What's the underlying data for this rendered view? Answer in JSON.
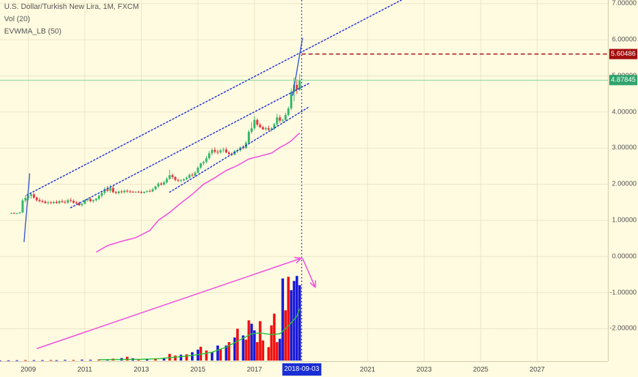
{
  "legend": {
    "title": "U.S. Dollar/Turkish New Lira, 1M, FXCM",
    "vol": "Vol (20)",
    "indicator": "EVWMA_LB (50)"
  },
  "chart_data": {
    "type": "candlestick",
    "title": "U.S. Dollar/Turkish New Lira, 1M, FXCM",
    "price_axis": {
      "ticks": [
        "7.00000",
        "6.00000",
        "5.00000",
        "4.00000",
        "3.00000",
        "2.00000",
        "1.00000",
        "0.00000",
        "-1.00000",
        "-2.00000"
      ],
      "ylim": [
        -2.9,
        7.1
      ]
    },
    "time_axis": {
      "ticks": [
        "2009",
        "2011",
        "2013",
        "2015",
        "2017",
        "2021",
        "2023",
        "2025",
        "2027"
      ],
      "xlim": [
        2008.0,
        2029.5
      ]
    },
    "last_price": {
      "value": "4.87845",
      "color": "#2ea36b"
    },
    "marked_price": {
      "value": "5.60486",
      "color": "#a30d0d"
    },
    "cursor_time": {
      "label": "2018-09-03",
      "x": 2018.67,
      "color": "#1a2ed6"
    },
    "candles": [
      [
        2008.4,
        1.2,
        1.22,
        1.18,
        1.2
      ],
      [
        2008.5,
        1.2,
        1.22,
        1.18,
        1.19
      ],
      [
        2008.6,
        1.19,
        1.21,
        1.17,
        1.2
      ],
      [
        2008.7,
        1.2,
        1.24,
        1.18,
        1.22
      ],
      [
        2008.8,
        1.22,
        1.6,
        1.2,
        1.55
      ],
      [
        2008.9,
        1.55,
        1.7,
        1.5,
        1.62
      ],
      [
        2009.0,
        1.62,
        1.75,
        1.55,
        1.68
      ],
      [
        2009.1,
        1.68,
        1.78,
        1.6,
        1.72
      ],
      [
        2009.2,
        1.72,
        1.76,
        1.6,
        1.63
      ],
      [
        2009.3,
        1.63,
        1.66,
        1.52,
        1.56
      ],
      [
        2009.4,
        1.56,
        1.62,
        1.5,
        1.53
      ],
      [
        2009.5,
        1.53,
        1.58,
        1.48,
        1.52
      ],
      [
        2009.6,
        1.52,
        1.56,
        1.46,
        1.48
      ],
      [
        2009.7,
        1.48,
        1.54,
        1.44,
        1.5
      ],
      [
        2009.8,
        1.5,
        1.54,
        1.45,
        1.48
      ],
      [
        2009.9,
        1.48,
        1.54,
        1.45,
        1.51
      ],
      [
        2010.0,
        1.51,
        1.56,
        1.46,
        1.48
      ],
      [
        2010.1,
        1.48,
        1.56,
        1.45,
        1.53
      ],
      [
        2010.2,
        1.53,
        1.58,
        1.48,
        1.51
      ],
      [
        2010.3,
        1.51,
        1.56,
        1.46,
        1.49
      ],
      [
        2010.4,
        1.49,
        1.6,
        1.46,
        1.56
      ],
      [
        2010.5,
        1.56,
        1.62,
        1.5,
        1.54
      ],
      [
        2010.6,
        1.54,
        1.58,
        1.46,
        1.49
      ],
      [
        2010.7,
        1.49,
        1.54,
        1.45,
        1.48
      ],
      [
        2010.8,
        1.48,
        1.52,
        1.4,
        1.42
      ],
      [
        2010.9,
        1.42,
        1.48,
        1.38,
        1.46
      ],
      [
        2011.0,
        1.46,
        1.58,
        1.44,
        1.56
      ],
      [
        2011.1,
        1.56,
        1.62,
        1.52,
        1.59
      ],
      [
        2011.2,
        1.59,
        1.62,
        1.5,
        1.53
      ],
      [
        2011.3,
        1.53,
        1.58,
        1.48,
        1.56
      ],
      [
        2011.4,
        1.56,
        1.62,
        1.52,
        1.6
      ],
      [
        2011.5,
        1.6,
        1.72,
        1.56,
        1.68
      ],
      [
        2011.6,
        1.68,
        1.8,
        1.62,
        1.76
      ],
      [
        2011.7,
        1.76,
        1.92,
        1.7,
        1.86
      ],
      [
        2011.8,
        1.86,
        1.95,
        1.78,
        1.82
      ],
      [
        2011.9,
        1.82,
        1.98,
        1.76,
        1.9
      ],
      [
        2012.0,
        1.9,
        1.95,
        1.75,
        1.78
      ],
      [
        2012.1,
        1.78,
        1.82,
        1.72,
        1.76
      ],
      [
        2012.2,
        1.76,
        1.82,
        1.72,
        1.8
      ],
      [
        2012.3,
        1.8,
        1.84,
        1.74,
        1.78
      ],
      [
        2012.4,
        1.78,
        1.86,
        1.74,
        1.82
      ],
      [
        2012.5,
        1.82,
        1.86,
        1.76,
        1.8
      ],
      [
        2012.6,
        1.8,
        1.84,
        1.76,
        1.79
      ],
      [
        2012.7,
        1.79,
        1.82,
        1.76,
        1.78
      ],
      [
        2012.8,
        1.78,
        1.81,
        1.76,
        1.79
      ],
      [
        2012.9,
        1.79,
        1.82,
        1.76,
        1.78
      ],
      [
        2013.0,
        1.78,
        1.82,
        1.74,
        1.76
      ],
      [
        2013.1,
        1.76,
        1.8,
        1.74,
        1.79
      ],
      [
        2013.2,
        1.79,
        1.84,
        1.77,
        1.81
      ],
      [
        2013.3,
        1.81,
        1.86,
        1.78,
        1.8
      ],
      [
        2013.4,
        1.8,
        1.9,
        1.78,
        1.86
      ],
      [
        2013.5,
        1.86,
        1.96,
        1.84,
        1.94
      ],
      [
        2013.6,
        1.94,
        2.06,
        1.9,
        2.02
      ],
      [
        2013.7,
        2.02,
        2.06,
        1.96,
        1.99
      ],
      [
        2013.8,
        1.99,
        2.1,
        1.96,
        2.05
      ],
      [
        2013.9,
        2.05,
        2.2,
        2.02,
        2.15
      ],
      [
        2014.0,
        2.15,
        2.4,
        2.12,
        2.25
      ],
      [
        2014.1,
        2.25,
        2.3,
        2.15,
        2.2
      ],
      [
        2014.2,
        2.2,
        2.22,
        2.08,
        2.12
      ],
      [
        2014.3,
        2.12,
        2.15,
        2.06,
        2.1
      ],
      [
        2014.4,
        2.1,
        2.14,
        2.05,
        2.11
      ],
      [
        2014.5,
        2.11,
        2.16,
        2.08,
        2.14
      ],
      [
        2014.6,
        2.14,
        2.22,
        2.12,
        2.18
      ],
      [
        2014.7,
        2.18,
        2.3,
        2.15,
        2.26
      ],
      [
        2014.8,
        2.26,
        2.32,
        2.2,
        2.24
      ],
      [
        2014.9,
        2.24,
        2.36,
        2.2,
        2.32
      ],
      [
        2015.0,
        2.32,
        2.5,
        2.3,
        2.46
      ],
      [
        2015.1,
        2.46,
        2.6,
        2.42,
        2.58
      ],
      [
        2015.2,
        2.58,
        2.66,
        2.52,
        2.62
      ],
      [
        2015.3,
        2.62,
        2.78,
        2.58,
        2.72
      ],
      [
        2015.4,
        2.72,
        2.92,
        2.68,
        2.86
      ],
      [
        2015.5,
        2.86,
        3.0,
        2.8,
        2.95
      ],
      [
        2015.6,
        2.95,
        3.02,
        2.85,
        2.9
      ],
      [
        2015.7,
        2.9,
        2.96,
        2.82,
        2.88
      ],
      [
        2015.8,
        2.88,
        2.98,
        2.84,
        2.94
      ],
      [
        2015.9,
        2.94,
        3.02,
        2.88,
        2.96
      ],
      [
        2016.0,
        2.96,
        3.02,
        2.86,
        2.88
      ],
      [
        2016.1,
        2.88,
        2.92,
        2.8,
        2.84
      ],
      [
        2016.2,
        2.84,
        2.88,
        2.78,
        2.82
      ],
      [
        2016.3,
        2.82,
        2.95,
        2.8,
        2.92
      ],
      [
        2016.4,
        2.92,
        2.98,
        2.86,
        2.94
      ],
      [
        2016.5,
        2.94,
        3.05,
        2.9,
        3.02
      ],
      [
        2016.6,
        3.02,
        3.08,
        2.96,
        3.0
      ],
      [
        2016.7,
        3.0,
        3.2,
        2.98,
        3.15
      ],
      [
        2016.8,
        3.15,
        3.5,
        3.1,
        3.45
      ],
      [
        2016.9,
        3.45,
        3.72,
        3.4,
        3.55
      ],
      [
        2017.0,
        3.55,
        3.88,
        3.5,
        3.78
      ],
      [
        2017.1,
        3.78,
        3.82,
        3.6,
        3.65
      ],
      [
        2017.2,
        3.65,
        3.7,
        3.55,
        3.58
      ],
      [
        2017.3,
        3.58,
        3.62,
        3.5,
        3.52
      ],
      [
        2017.4,
        3.52,
        3.6,
        3.48,
        3.55
      ],
      [
        2017.5,
        3.55,
        3.62,
        3.48,
        3.51
      ],
      [
        2017.6,
        3.51,
        3.58,
        3.46,
        3.54
      ],
      [
        2017.7,
        3.54,
        3.7,
        3.5,
        3.66
      ],
      [
        2017.8,
        3.66,
        3.95,
        3.6,
        3.85
      ],
      [
        2017.9,
        3.85,
        3.92,
        3.7,
        3.76
      ],
      [
        2018.0,
        3.76,
        3.82,
        3.7,
        3.78
      ],
      [
        2018.1,
        3.78,
        3.98,
        3.74,
        3.92
      ],
      [
        2018.2,
        3.92,
        4.15,
        3.88,
        4.1
      ],
      [
        2018.3,
        4.1,
        4.65,
        4.05,
        4.55
      ],
      [
        2018.4,
        4.55,
        4.95,
        4.3,
        4.75
      ],
      [
        2018.5,
        4.75,
        4.9,
        4.5,
        4.62
      ],
      [
        2018.6,
        4.62,
        5.05,
        4.58,
        4.88
      ]
    ],
    "evwma": [
      [
        2011.4,
        0.12
      ],
      [
        2011.8,
        0.3
      ],
      [
        2012.3,
        0.42
      ],
      [
        2012.8,
        0.52
      ],
      [
        2013.3,
        0.72
      ],
      [
        2013.6,
        1.0
      ],
      [
        2014.0,
        1.22
      ],
      [
        2014.4,
        1.48
      ],
      [
        2014.8,
        1.72
      ],
      [
        2015.2,
        2.0
      ],
      [
        2015.6,
        2.18
      ],
      [
        2016.0,
        2.38
      ],
      [
        2016.4,
        2.52
      ],
      [
        2016.8,
        2.7
      ],
      [
        2017.2,
        2.78
      ],
      [
        2017.6,
        2.86
      ],
      [
        2017.9,
        3.02
      ],
      [
        2018.1,
        3.1
      ],
      [
        2018.3,
        3.2
      ],
      [
        2018.5,
        3.35
      ],
      [
        2018.6,
        3.42
      ]
    ],
    "volume": {
      "series": [
        {
          "name": "Vol (20)",
          "bars": [
            [
              2008.0,
              0.05,
              "b"
            ],
            [
              2008.3,
              0.06,
              "b"
            ],
            [
              2008.6,
              0.08,
              "b"
            ],
            [
              2008.9,
              0.12,
              "r"
            ],
            [
              2009.2,
              0.1,
              "b"
            ],
            [
              2009.5,
              0.12,
              "b"
            ],
            [
              2009.8,
              0.14,
              "r"
            ],
            [
              2010.0,
              0.1,
              "b"
            ],
            [
              2010.3,
              0.18,
              "b"
            ],
            [
              2010.6,
              0.16,
              "r"
            ],
            [
              2010.9,
              0.22,
              "b"
            ],
            [
              2011.2,
              0.2,
              "b"
            ],
            [
              2011.5,
              0.25,
              "r"
            ],
            [
              2011.8,
              0.3,
              "b"
            ],
            [
              2012.0,
              0.45,
              "r"
            ],
            [
              2012.3,
              0.6,
              "b"
            ],
            [
              2012.5,
              0.9,
              "r"
            ],
            [
              2012.7,
              0.55,
              "b"
            ],
            [
              2012.9,
              0.35,
              "r"
            ],
            [
              2013.2,
              0.3,
              "b"
            ],
            [
              2013.5,
              0.4,
              "r"
            ],
            [
              2013.8,
              0.6,
              "b"
            ],
            [
              2014.0,
              1.6,
              "r"
            ],
            [
              2014.2,
              1.2,
              "r"
            ],
            [
              2014.4,
              1.4,
              "b"
            ],
            [
              2014.6,
              1.5,
              "r"
            ],
            [
              2014.8,
              2.0,
              "b"
            ],
            [
              2015.0,
              2.6,
              "b"
            ],
            [
              2015.1,
              3.3,
              "r"
            ],
            [
              2015.3,
              2.4,
              "r"
            ],
            [
              2015.5,
              2.0,
              "b"
            ],
            [
              2015.7,
              3.6,
              "b"
            ],
            [
              2015.8,
              2.8,
              "r"
            ],
            [
              2016.0,
              3.6,
              "b"
            ],
            [
              2016.1,
              4.4,
              "r"
            ],
            [
              2016.3,
              5.5,
              "b"
            ],
            [
              2016.4,
              7.6,
              "r"
            ],
            [
              2016.6,
              6.0,
              "b"
            ],
            [
              2016.7,
              5.0,
              "r"
            ],
            [
              2016.8,
              9.6,
              "r"
            ],
            [
              2016.9,
              8.8,
              "b"
            ],
            [
              2017.0,
              7.2,
              "b"
            ],
            [
              2017.1,
              4.4,
              "r"
            ],
            [
              2017.2,
              9.4,
              "r"
            ],
            [
              2017.3,
              4.8,
              "r"
            ],
            [
              2017.5,
              3.2,
              "r"
            ],
            [
              2017.6,
              8.4,
              "r"
            ],
            [
              2017.7,
              11.2,
              "r"
            ],
            [
              2017.8,
              4.4,
              "r"
            ],
            [
              2017.9,
              5.2,
              "b"
            ],
            [
              2018.0,
              19.6,
              "b"
            ],
            [
              2018.1,
              12.0,
              "r"
            ],
            [
              2018.2,
              20.0,
              "r"
            ],
            [
              2018.3,
              16.8,
              "b"
            ],
            [
              2018.4,
              19.0,
              "b"
            ],
            [
              2018.5,
              20.2,
              "b"
            ],
            [
              2018.6,
              18.0,
              "b"
            ]
          ]
        },
        {
          "name": "MA",
          "line": [
            [
              2011.5,
              0.2
            ],
            [
              2013.0,
              0.3
            ],
            [
              2013.6,
              0.45
            ],
            [
              2014.0,
              0.7
            ],
            [
              2014.5,
              1.0
            ],
            [
              2015.0,
              1.4
            ],
            [
              2015.5,
              2.0
            ],
            [
              2016.0,
              3.2
            ],
            [
              2016.5,
              5.0
            ],
            [
              2016.9,
              6.4
            ],
            [
              2017.2,
              6.6
            ],
            [
              2017.6,
              6.2
            ],
            [
              2017.9,
              6.4
            ],
            [
              2018.1,
              7.6
            ],
            [
              2018.3,
              9.0
            ],
            [
              2018.5,
              10.6
            ],
            [
              2018.6,
              12.4
            ]
          ]
        }
      ],
      "max": 24
    },
    "trendlines": [
      {
        "name": "upper-channel-line",
        "style": "dotted",
        "color": "#1a2ed6",
        "points": [
          [
            2008.95,
            1.7
          ],
          [
            2022.2,
            7.1
          ]
        ]
      },
      {
        "name": "mid-channel-line",
        "style": "dotted",
        "color": "#1a2ed6",
        "points": [
          [
            2010.5,
            1.35
          ],
          [
            2018.95,
            4.8
          ]
        ]
      },
      {
        "name": "lower-channel-line",
        "style": "dotted",
        "color": "#1a2ed6",
        "points": [
          [
            2014.0,
            1.78
          ],
          [
            2018.95,
            4.15
          ]
        ]
      },
      {
        "name": "upper-spike-line",
        "style": "solid",
        "color": "#3a5bd6",
        "points": [
          [
            2008.85,
            0.4
          ],
          [
            2009.05,
            2.3
          ]
        ]
      },
      {
        "name": "recent-spike-line",
        "style": "solid",
        "color": "#3a5bd6",
        "points": [
          [
            2018.35,
            4.45
          ],
          [
            2018.7,
            6.05
          ]
        ]
      }
    ],
    "annotations": [
      {
        "name": "volume-trend-arrow",
        "color": "#f04de0",
        "from": [
          2009.3,
          -2.55
        ],
        "to": [
          2018.65,
          -0.05
        ]
      },
      {
        "name": "volume-down-arrow",
        "color": "#f04de0",
        "from": [
          2018.7,
          -0.05
        ],
        "to": [
          2019.15,
          -0.85
        ]
      }
    ]
  }
}
